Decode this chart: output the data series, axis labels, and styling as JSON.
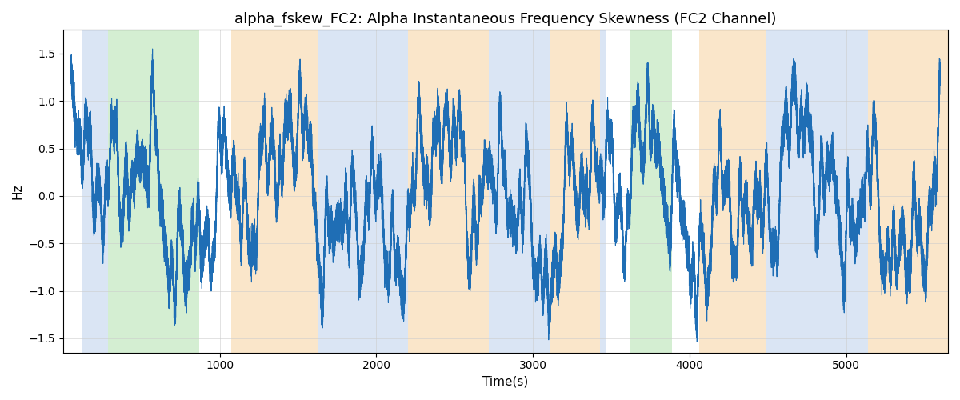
{
  "title": "alpha_fskew_FC2: Alpha Instantaneous Frequency Skewness (FC2 Channel)",
  "xlabel": "Time(s)",
  "ylabel": "Hz",
  "ylim": [
    -1.65,
    1.75
  ],
  "xlim": [
    0,
    5650
  ],
  "bg_bands": [
    {
      "start": 120,
      "end": 285,
      "color": "#aec6e8",
      "alpha": 0.45
    },
    {
      "start": 285,
      "end": 870,
      "color": "#90d48a",
      "alpha": 0.38
    },
    {
      "start": 870,
      "end": 1075,
      "color": "#f5c98a",
      "alpha": 0.0
    },
    {
      "start": 1075,
      "end": 1630,
      "color": "#f5c98a",
      "alpha": 0.45
    },
    {
      "start": 1630,
      "end": 2200,
      "color": "#aec6e8",
      "alpha": 0.45
    },
    {
      "start": 2200,
      "end": 2720,
      "color": "#f5c98a",
      "alpha": 0.45
    },
    {
      "start": 2720,
      "end": 3110,
      "color": "#aec6e8",
      "alpha": 0.45
    },
    {
      "start": 3110,
      "end": 3430,
      "color": "#f5c98a",
      "alpha": 0.45
    },
    {
      "start": 3430,
      "end": 3470,
      "color": "#aec6e8",
      "alpha": 0.45
    },
    {
      "start": 3470,
      "end": 3620,
      "color": "#90d48a",
      "alpha": 0.0
    },
    {
      "start": 3620,
      "end": 3890,
      "color": "#90d48a",
      "alpha": 0.38
    },
    {
      "start": 3890,
      "end": 4060,
      "color": "#aec6e8",
      "alpha": 0.0
    },
    {
      "start": 4060,
      "end": 4490,
      "color": "#f5c98a",
      "alpha": 0.45
    },
    {
      "start": 4490,
      "end": 5140,
      "color": "#aec6e8",
      "alpha": 0.45
    },
    {
      "start": 5140,
      "end": 5650,
      "color": "#f5c98a",
      "alpha": 0.45
    }
  ],
  "line_color": "#1f6eb5",
  "line_width": 0.8,
  "figsize": [
    12.0,
    5.0
  ],
  "dpi": 100,
  "seed": 42,
  "n_points": 55000,
  "x_start": 50,
  "x_end": 5600,
  "yticks": [
    -1.5,
    -1.0,
    -0.5,
    0.0,
    0.5,
    1.0,
    1.5
  ],
  "xticks": [
    1000,
    2000,
    3000,
    4000,
    5000
  ],
  "amplitude": 1.55
}
